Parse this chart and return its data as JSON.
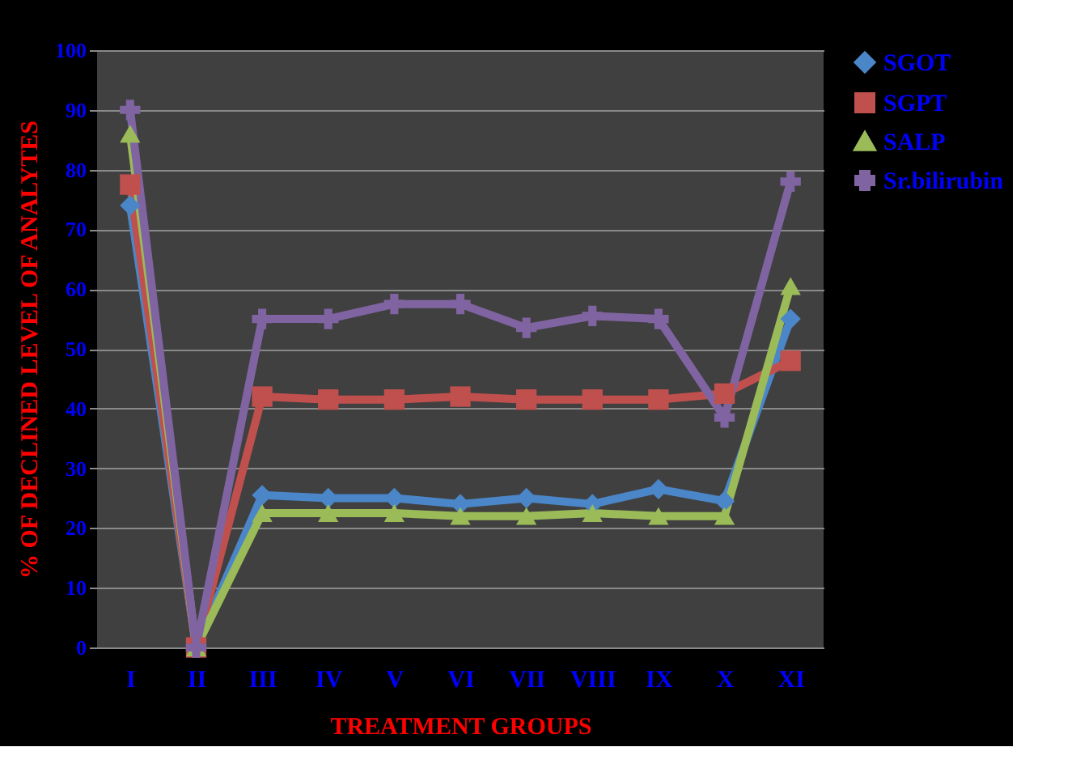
{
  "chart_data": {
    "type": "line",
    "xlabel": "TREATMENT GROUPS",
    "ylabel": "% OF DECLINED LEVEL OF ANALYTES",
    "categories": [
      "I",
      "II",
      "III",
      "IV",
      "V",
      "VI",
      "VII",
      "VIII",
      "IX",
      "X",
      "XI"
    ],
    "series": [
      {
        "name": "SGOT",
        "color": "#4a86c8",
        "marker": "diamond",
        "values": [
          74,
          0,
          25.5,
          25,
          25,
          24,
          25,
          24,
          26.5,
          24.5,
          55
        ]
      },
      {
        "name": "SGPT",
        "color": "#c0504d",
        "marker": "square",
        "values": [
          77.5,
          0,
          42,
          41.5,
          41.5,
          42,
          41.5,
          41.5,
          41.5,
          42.5,
          48
        ]
      },
      {
        "name": "SALP",
        "color": "#9bbb59",
        "marker": "triangle",
        "values": [
          86,
          0,
          22.5,
          22.5,
          22.5,
          22,
          22,
          22.5,
          22,
          22,
          60.5
        ]
      },
      {
        "name": "Sr.bilirubin",
        "color": "#8064a2",
        "marker": "cross",
        "values": [
          90,
          0,
          55,
          55,
          57.5,
          57.5,
          53.5,
          55.5,
          55,
          38.5,
          78
        ]
      }
    ],
    "ylim": [
      0,
      100
    ],
    "yticks": [
      0,
      10,
      20,
      30,
      40,
      50,
      60,
      70,
      80,
      90,
      100
    ],
    "grid": "y",
    "legend": "right"
  }
}
